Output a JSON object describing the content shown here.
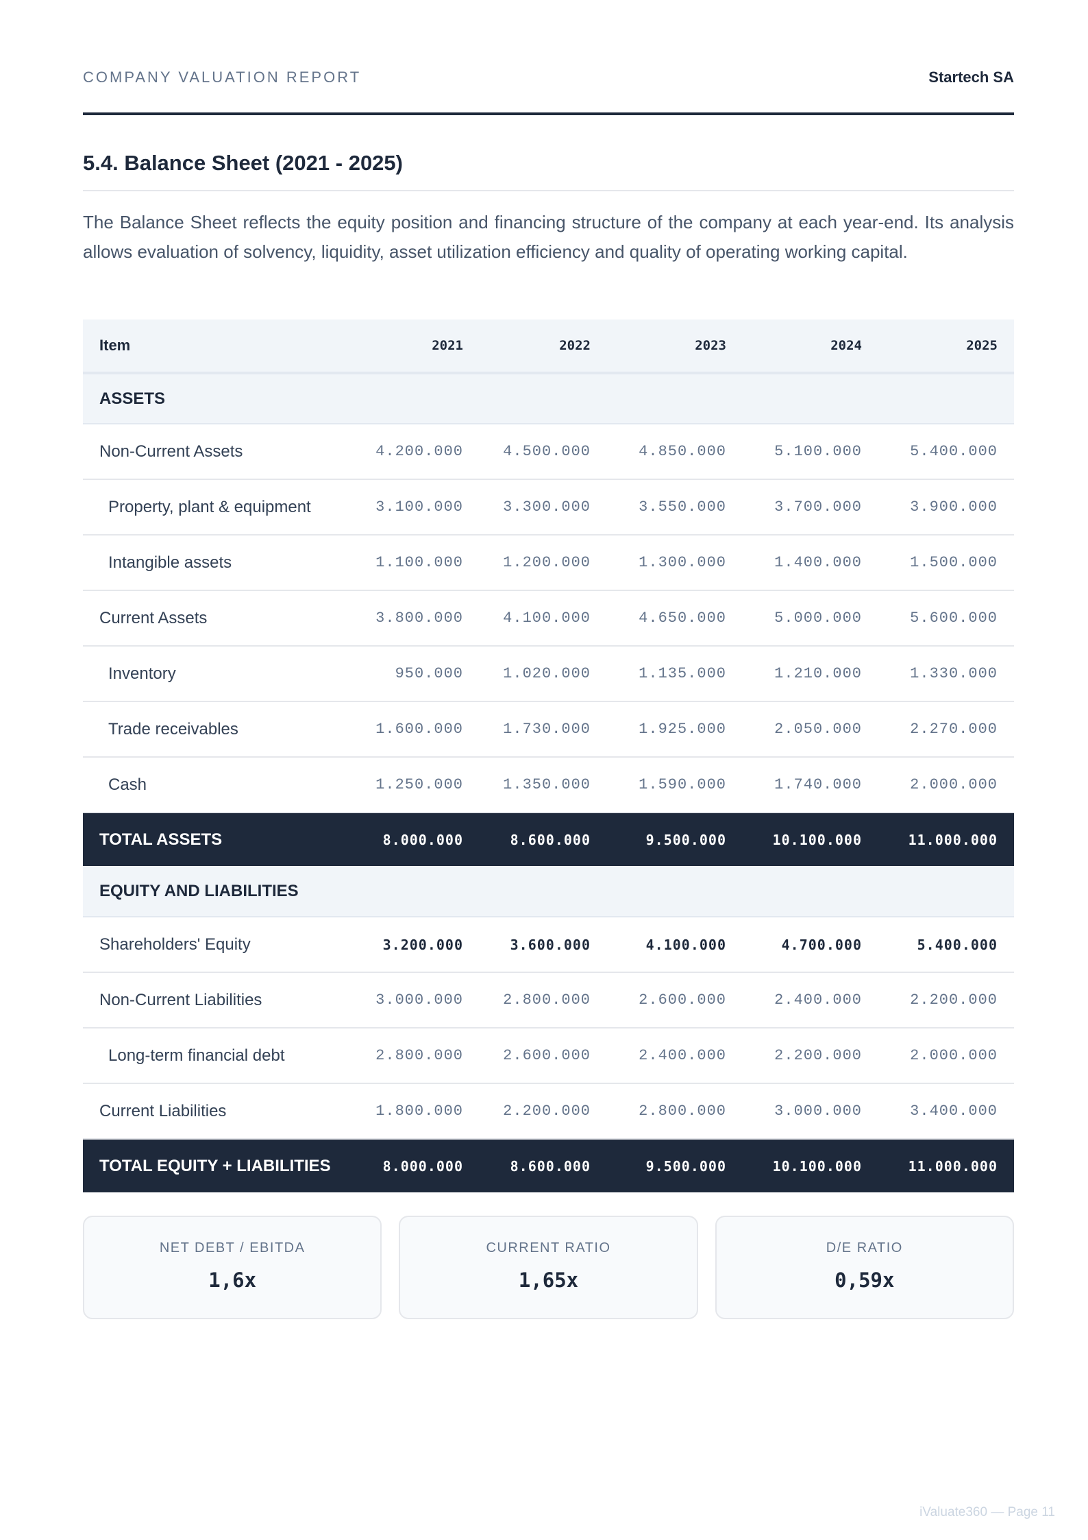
{
  "header": {
    "report": "COMPANY VALUATION REPORT",
    "company": "Startech SA"
  },
  "section_title": "5.4. Balance Sheet (2021 - 2025)",
  "intro": "The Balance Sheet reflects the equity position and financing structure of the company at each year-end. Its analysis allows evaluation of solvency, liquidity, asset utilization efficiency and quality of operating working capital.",
  "table": {
    "columns": [
      "Item",
      "2021",
      "2022",
      "2023",
      "2024",
      "2025"
    ],
    "assets_label": "ASSETS",
    "assets": [
      {
        "label": "Non-Current Assets",
        "values": [
          "4.200.000",
          "4.500.000",
          "4.850.000",
          "5.100.000",
          "5.400.000"
        ]
      },
      {
        "label": "Property, plant & equipment",
        "values": [
          "3.100.000",
          "3.300.000",
          "3.550.000",
          "3.700.000",
          "3.900.000"
        ]
      },
      {
        "label": "Intangible assets",
        "values": [
          "1.100.000",
          "1.200.000",
          "1.300.000",
          "1.400.000",
          "1.500.000"
        ]
      },
      {
        "label": "Current Assets",
        "values": [
          "3.800.000",
          "4.100.000",
          "4.650.000",
          "5.000.000",
          "5.600.000"
        ]
      },
      {
        "label": "Inventory",
        "values": [
          "950.000",
          "1.020.000",
          "1.135.000",
          "1.210.000",
          "1.330.000"
        ]
      },
      {
        "label": "Trade receivables",
        "values": [
          "1.600.000",
          "1.730.000",
          "1.925.000",
          "2.050.000",
          "2.270.000"
        ]
      },
      {
        "label": "Cash",
        "values": [
          "1.250.000",
          "1.350.000",
          "1.590.000",
          "1.740.000",
          "2.000.000"
        ]
      }
    ],
    "total_assets": {
      "label": "TOTAL ASSETS",
      "values": [
        "8.000.000",
        "8.600.000",
        "9.500.000",
        "10.100.000",
        "11.000.000"
      ]
    },
    "eq_label": "EQUITY AND LIABILITIES",
    "equity": [
      {
        "label": "Shareholders' Equity",
        "values": [
          "3.200.000",
          "3.600.000",
          "4.100.000",
          "4.700.000",
          "5.400.000"
        ]
      },
      {
        "label": "Non-Current Liabilities",
        "values": [
          "3.000.000",
          "2.800.000",
          "2.600.000",
          "2.400.000",
          "2.200.000"
        ]
      },
      {
        "label": "Long-term financial debt",
        "values": [
          "2.800.000",
          "2.600.000",
          "2.400.000",
          "2.200.000",
          "2.000.000"
        ]
      },
      {
        "label": "Current Liabilities",
        "values": [
          "1.800.000",
          "2.200.000",
          "2.800.000",
          "3.000.000",
          "3.400.000"
        ]
      }
    ],
    "total_eq": {
      "label": "TOTAL EQUITY + LIABILITIES",
      "values": [
        "8.000.000",
        "8.600.000",
        "9.500.000",
        "10.100.000",
        "11.000.000"
      ]
    }
  },
  "kpis": [
    {
      "label": "NET DEBT / EBITDA",
      "value": "1,6x"
    },
    {
      "label": "CURRENT RATIO",
      "value": "1,65x"
    },
    {
      "label": "D/E RATIO",
      "value": "0,59x"
    }
  ],
  "footer": "iValuate360 — Page 11"
}
